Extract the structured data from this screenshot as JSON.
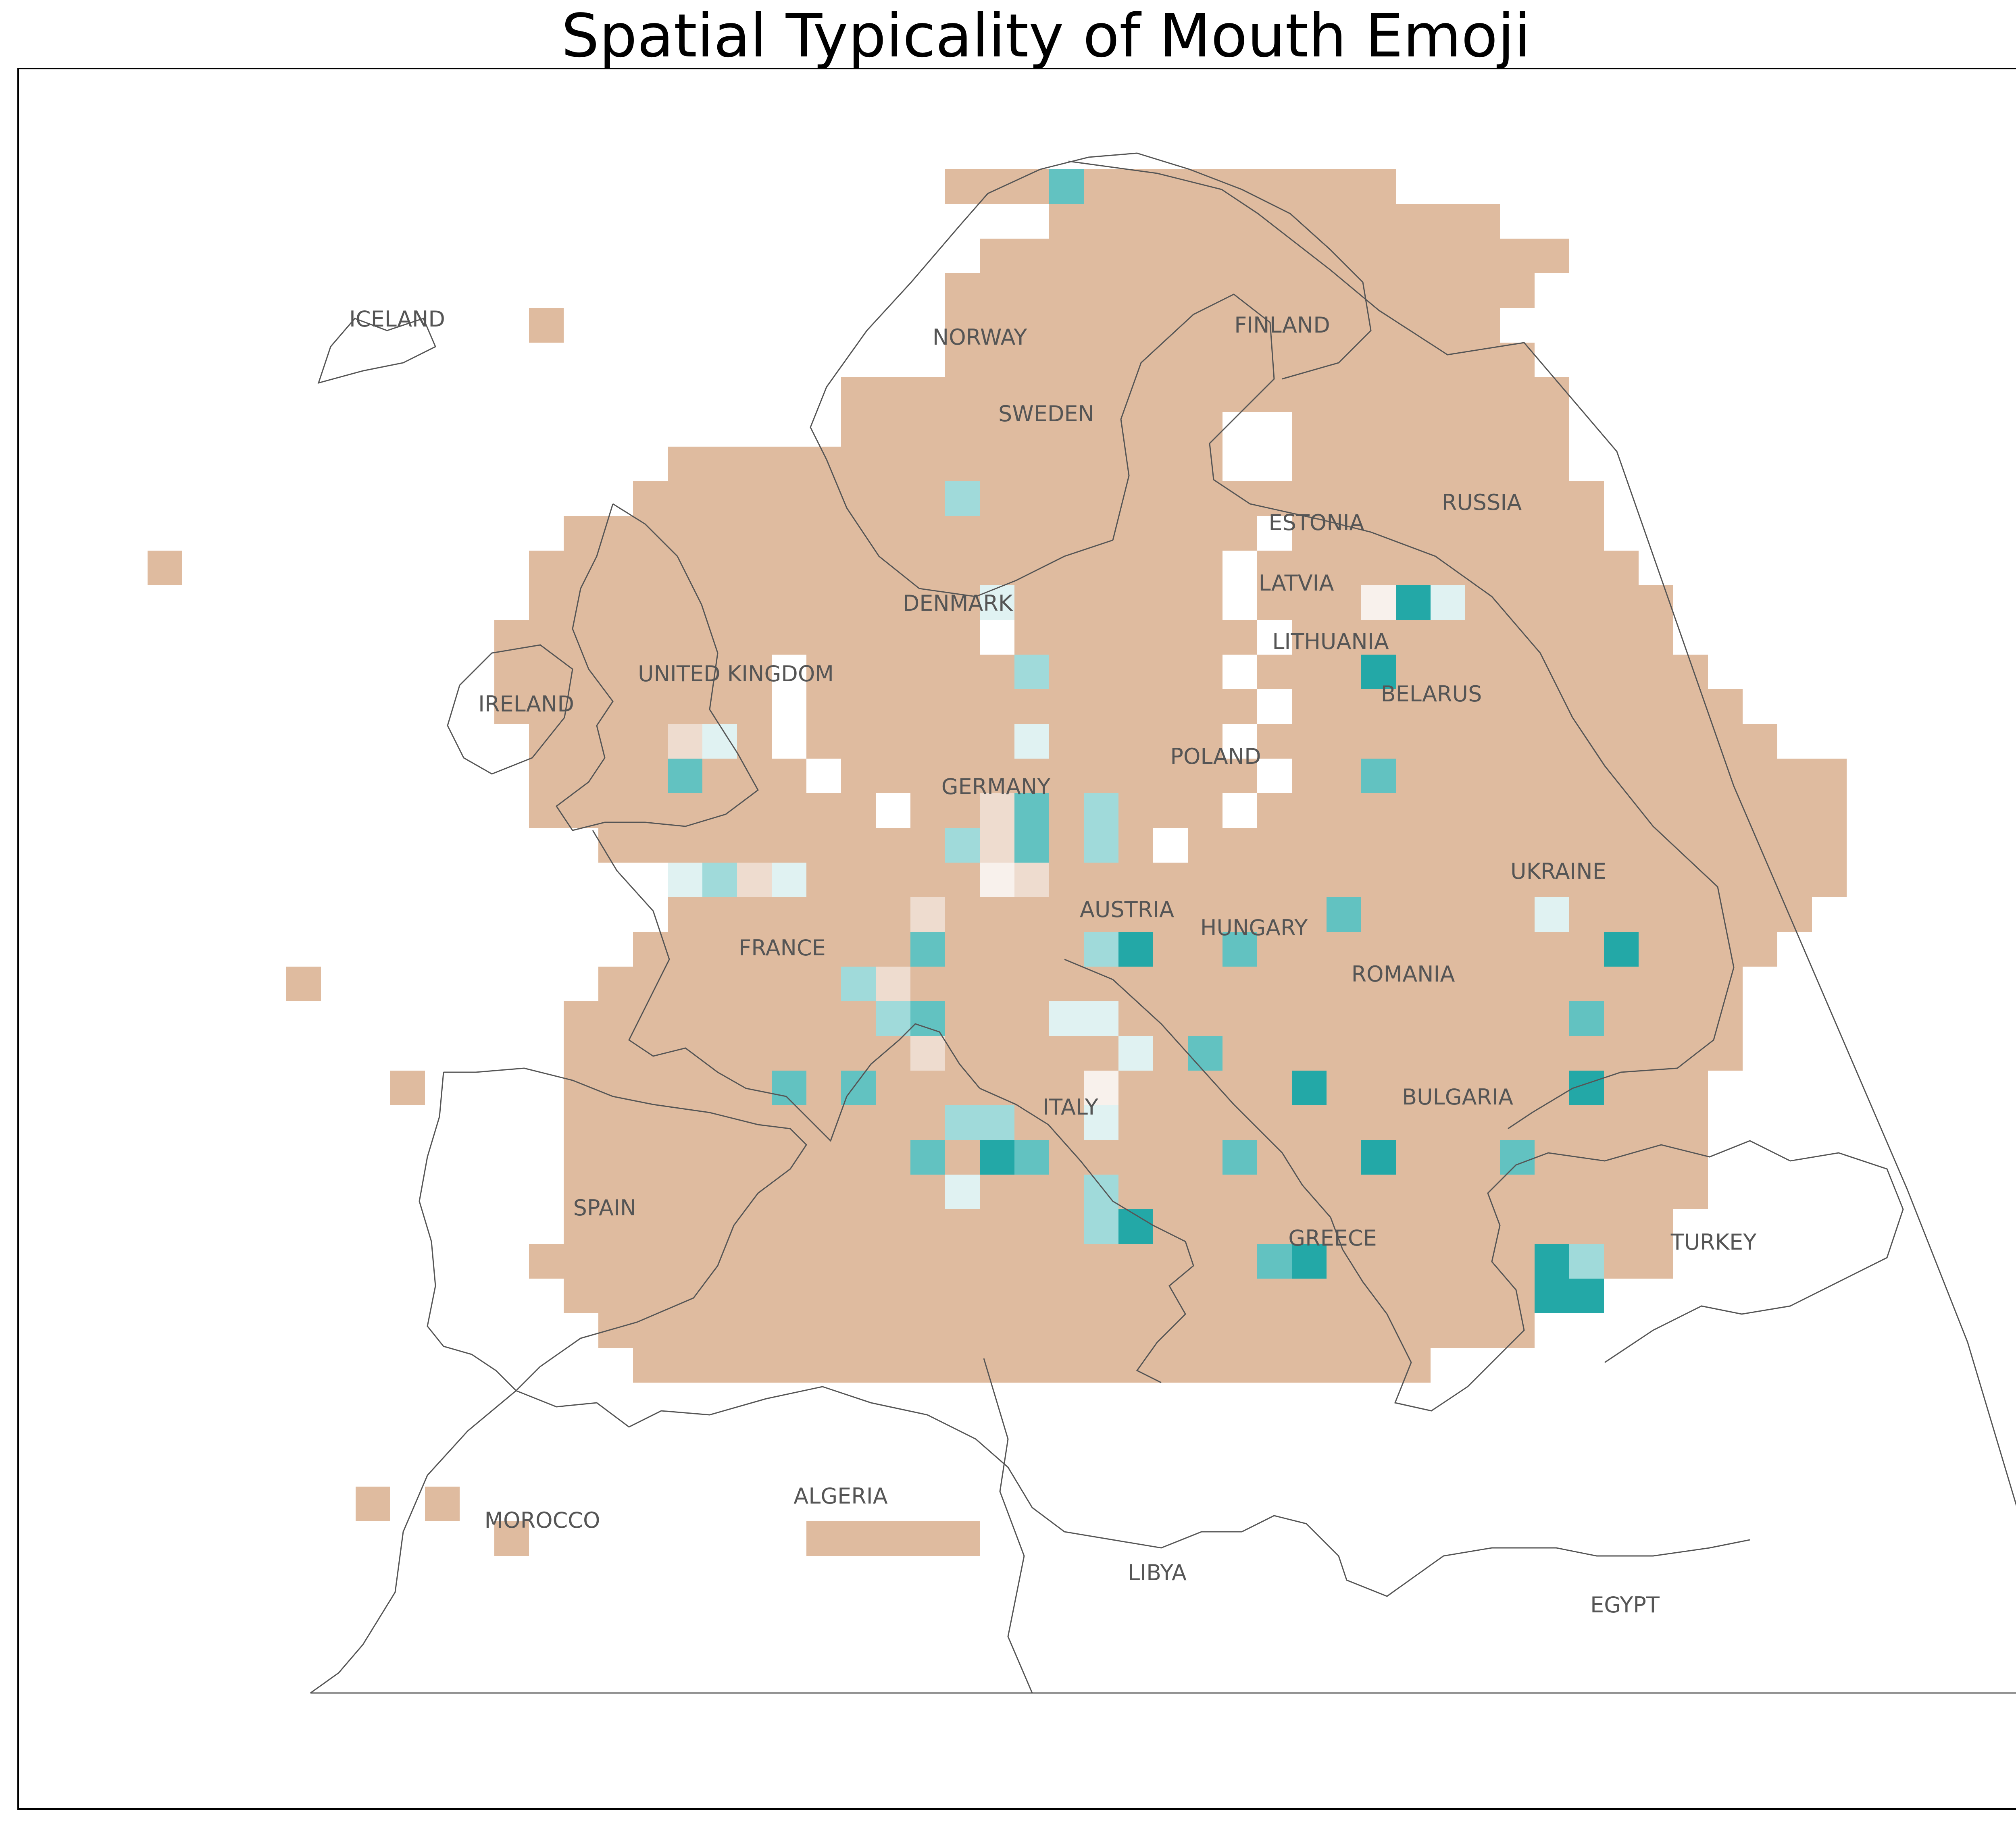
{
  "title": "Spatial Typicality of Mouth Emoji",
  "colors": {
    "background": "#ffffff",
    "frame": "#000000",
    "coastline": "#555555",
    "label": "#555555",
    "not_typical": "#dfbb9f",
    "light_tan": "#eedccf",
    "very_light_tan": "#f8f1ec",
    "pale_teal": "#e0f2f2",
    "light_teal": "#a0dada",
    "mid_teal": "#62c2c1",
    "strong_teal": "#23a8a7"
  },
  "country_labels": [
    "ICELAND",
    "NORWAY",
    "FINLAND",
    "SWEDEN",
    "RUSSIA",
    "ESTONIA",
    "LATVIA",
    "DENMARK",
    "LITHUANIA",
    "UNITED KINGDOM",
    "IRELAND",
    "BELARUS",
    "POLAND",
    "GERMANY",
    "UKRAINE",
    "AUSTRIA",
    "HUNGARY",
    "FRANCE",
    "ROMANIA",
    "ITALY",
    "BULGARIA",
    "SPAIN",
    "GREECE",
    "TURKEY",
    "MOROCCO",
    "ALGERIA",
    "LIBYA",
    "EGYPT"
  ]
}
